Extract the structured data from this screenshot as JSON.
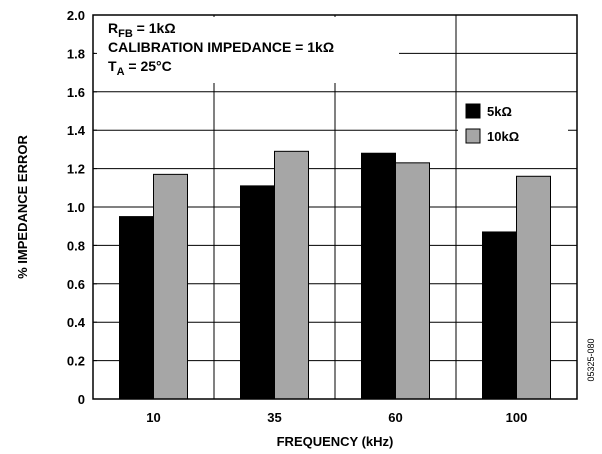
{
  "chart_data": {
    "type": "bar",
    "categories": [
      "10",
      "35",
      "60",
      "100"
    ],
    "series": [
      {
        "name": "5kΩ",
        "values": [
          0.95,
          1.11,
          1.28,
          0.87
        ],
        "color": "#000000"
      },
      {
        "name": "10kΩ",
        "values": [
          1.17,
          1.29,
          1.23,
          1.16
        ],
        "color": "#a6a6a6"
      }
    ],
    "xlabel": "FREQUENCY (kHz)",
    "ylabel": "% IMPEDANCE ERROR",
    "ylim": [
      0,
      2.0
    ],
    "yticks": [
      "0",
      "0.2",
      "0.4",
      "0.6",
      "0.8",
      "1.0",
      "1.2",
      "1.4",
      "1.6",
      "1.8",
      "2.0"
    ],
    "grid": true,
    "legend_position": "right",
    "annotations": {
      "rfb_main": "R",
      "rfb_sub": "FB",
      "rfb_rest": " = 1kΩ",
      "calibration": "CALIBRATION IMPEDANCE = 1kΩ",
      "ta_main": "T",
      "ta_sub": "A",
      "ta_rest": " = 25°C"
    },
    "figure_id": "05325-080"
  }
}
